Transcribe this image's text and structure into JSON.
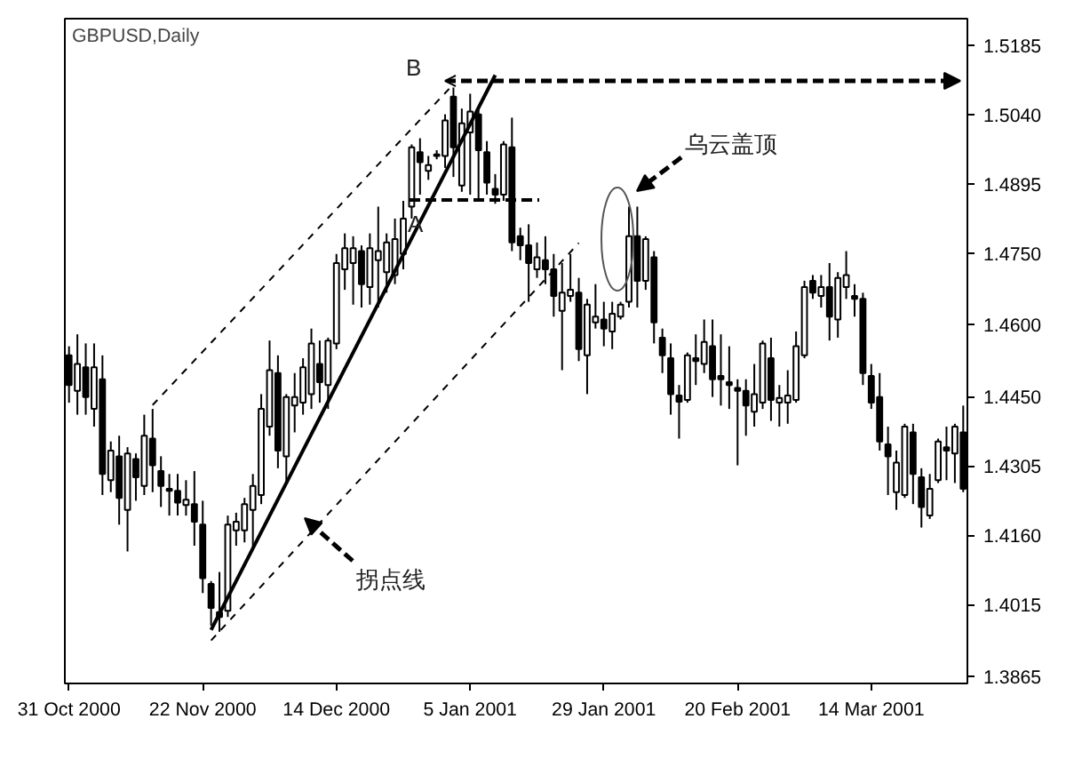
{
  "chart_data": {
    "type": "candlestick",
    "title": "GBPUSD,Daily",
    "categories": [
      "31 Oct 2000",
      null,
      null,
      null,
      null,
      null,
      null,
      null,
      null,
      null,
      null,
      null,
      null,
      null,
      null,
      null,
      "22 Nov 2000",
      null,
      null,
      null,
      null,
      null,
      null,
      null,
      null,
      null,
      null,
      null,
      null,
      null,
      null,
      null,
      "14 Dec 2000",
      null,
      null,
      null,
      null,
      null,
      null,
      null,
      null,
      null,
      null,
      null,
      null,
      null,
      null,
      null,
      "5 Jan 2001",
      null,
      null,
      null,
      null,
      null,
      null,
      null,
      null,
      null,
      null,
      null,
      null,
      null,
      null,
      null,
      "29 Jan 2001",
      null,
      null,
      null,
      null,
      null,
      null,
      null,
      null,
      null,
      null,
      null,
      null,
      null,
      null,
      null,
      "20 Feb 2001",
      null,
      null,
      null,
      null,
      null,
      null,
      null,
      null,
      null,
      null,
      null,
      null,
      null,
      null,
      null,
      "14 Mar 2001",
      null,
      null,
      null,
      null,
      null,
      null,
      null,
      null,
      null,
      null,
      null
    ],
    "ohlc": [
      [
        1.4536,
        1.4555,
        1.4437,
        1.4474
      ],
      [
        1.4462,
        1.458,
        1.4412,
        1.4518
      ],
      [
        1.4511,
        1.4561,
        1.4412,
        1.4449
      ],
      [
        1.4424,
        1.4561,
        1.4387,
        1.4511
      ],
      [
        1.4486,
        1.4536,
        1.4244,
        1.4288
      ],
      [
        1.4275,
        1.4356,
        1.425,
        1.4337
      ],
      [
        1.4325,
        1.4368,
        1.4182,
        1.4238
      ],
      [
        1.4213,
        1.4344,
        1.4126,
        1.4331
      ],
      [
        1.4319,
        1.4331,
        1.4232,
        1.4281
      ],
      [
        1.4263,
        1.4412,
        1.4244,
        1.4368
      ],
      [
        1.4362,
        1.4424,
        1.425,
        1.4306
      ],
      [
        1.4294,
        1.4325,
        1.4219,
        1.4263
      ],
      [
        1.4257,
        1.4288,
        1.4201,
        1.4253
      ],
      [
        1.4253,
        1.4288,
        1.4201,
        1.4228
      ],
      [
        1.4223,
        1.4275,
        1.4201,
        1.4234
      ],
      [
        1.4225,
        1.4294,
        1.4138,
        1.4188
      ],
      [
        1.4182,
        1.4232,
        1.4039,
        1.407
      ],
      [
        1.4058,
        1.4064,
        1.3971,
        1.4008
      ],
      [
        1.3999,
        1.4083,
        1.3958,
        1.3989
      ],
      [
        1.4002,
        1.4201,
        1.3989,
        1.4182
      ],
      [
        1.417,
        1.4207,
        1.4138,
        1.4188
      ],
      [
        1.417,
        1.4238,
        1.4145,
        1.4225
      ],
      [
        1.4213,
        1.4288,
        1.4132,
        1.4263
      ],
      [
        1.4244,
        1.4455,
        1.4225,
        1.4424
      ],
      [
        1.4387,
        1.4567,
        1.4368,
        1.4505
      ],
      [
        1.4499,
        1.4536,
        1.43,
        1.4337
      ],
      [
        1.4325,
        1.4455,
        1.4269,
        1.4449
      ],
      [
        1.4431,
        1.4499,
        1.4375,
        1.4449
      ],
      [
        1.4437,
        1.453,
        1.4412,
        1.4511
      ],
      [
        1.4455,
        1.4592,
        1.4424,
        1.4561
      ],
      [
        1.4518,
        1.4567,
        1.4437,
        1.448
      ],
      [
        1.4474,
        1.4573,
        1.4424,
        1.4567
      ],
      [
        1.4561,
        1.4748,
        1.4549,
        1.4729
      ],
      [
        1.4716,
        1.4791,
        1.4673,
        1.476
      ],
      [
        1.4729,
        1.4785,
        1.4642,
        1.476
      ],
      [
        1.4754,
        1.4766,
        1.4636,
        1.4685
      ],
      [
        1.4679,
        1.4791,
        1.4642,
        1.476
      ],
      [
        1.4735,
        1.4847,
        1.4636,
        1.4754
      ],
      [
        1.471,
        1.4791,
        1.4667,
        1.4772
      ],
      [
        1.4704,
        1.4822,
        1.4685,
        1.4779
      ],
      [
        1.4748,
        1.4859,
        1.4716,
        1.4822
      ],
      [
        1.4847,
        1.4977,
        1.4822,
        1.4971
      ],
      [
        1.4961,
        1.499,
        1.4872,
        1.494
      ],
      [
        1.4922,
        1.4953,
        1.4903,
        1.4934
      ],
      [
        1.4953,
        1.4965,
        1.4946,
        1.4956
      ],
      [
        1.4953,
        1.504,
        1.4928,
        1.5027
      ],
      [
        1.5077,
        1.5096,
        1.4909,
        1.4971
      ],
      [
        1.4891,
        1.5052,
        1.4878,
        1.5021
      ],
      [
        1.5002,
        1.5083,
        1.4872,
        1.5046
      ],
      [
        1.504,
        1.5052,
        1.4859,
        1.4965
      ],
      [
        1.4961,
        1.4984,
        1.4872,
        1.4897
      ],
      [
        1.4884,
        1.4915,
        1.4853,
        1.4872
      ],
      [
        1.4872,
        1.4984,
        1.4859,
        1.4977
      ],
      [
        1.4971,
        1.5033,
        1.4754,
        1.4772
      ],
      [
        1.4785,
        1.4803,
        1.4735,
        1.4766
      ],
      [
        1.4766,
        1.481,
        1.4648,
        1.4729
      ],
      [
        1.4716,
        1.4772,
        1.4698,
        1.4741
      ],
      [
        1.4735,
        1.4785,
        1.4685,
        1.4716
      ],
      [
        1.4716,
        1.4748,
        1.4617,
        1.466
      ],
      [
        1.4629,
        1.4729,
        1.4505,
        1.4667
      ],
      [
        1.466,
        1.4748,
        1.4648,
        1.4673
      ],
      [
        1.4667,
        1.4698,
        1.4524,
        1.4549
      ],
      [
        1.4536,
        1.4654,
        1.4455,
        1.4642
      ],
      [
        1.4605,
        1.4685,
        1.4592,
        1.4617
      ],
      [
        1.4611,
        1.4648,
        1.4555,
        1.4592
      ],
      [
        1.4586,
        1.4648,
        1.4549,
        1.4623
      ],
      [
        1.4617,
        1.4648,
        1.4611,
        1.4642
      ],
      [
        1.4648,
        1.4847,
        1.4636,
        1.4785
      ],
      [
        1.4785,
        1.4847,
        1.4636,
        1.4692
      ],
      [
        1.4692,
        1.4785,
        1.4673,
        1.4779
      ],
      [
        1.4741,
        1.4754,
        1.4561,
        1.4605
      ],
      [
        1.4573,
        1.4592,
        1.4499,
        1.4536
      ],
      [
        1.453,
        1.4561,
        1.4412,
        1.4455
      ],
      [
        1.4452,
        1.4474,
        1.4362,
        1.4439
      ],
      [
        1.4443,
        1.4542,
        1.4437,
        1.4536
      ],
      [
        1.453,
        1.458,
        1.4474,
        1.4524
      ],
      [
        1.4518,
        1.4611,
        1.4499,
        1.4564
      ],
      [
        1.4555,
        1.4611,
        1.4449,
        1.4486
      ],
      [
        1.4493,
        1.458,
        1.4431,
        1.4486
      ],
      [
        1.448,
        1.4555,
        1.4424,
        1.4474
      ],
      [
        1.4468,
        1.4486,
        1.4306,
        1.4462
      ],
      [
        1.4462,
        1.4486,
        1.4368,
        1.4431
      ],
      [
        1.4418,
        1.4518,
        1.4387,
        1.4455
      ],
      [
        1.4437,
        1.4567,
        1.4424,
        1.4561
      ],
      [
        1.453,
        1.4573,
        1.4399,
        1.4443
      ],
      [
        1.4437,
        1.4474,
        1.4387,
        1.4447
      ],
      [
        1.4437,
        1.4505,
        1.4393,
        1.4452
      ],
      [
        1.4443,
        1.4586,
        1.4437,
        1.4555
      ],
      [
        1.4536,
        1.4692,
        1.453,
        1.4679
      ],
      [
        1.4692,
        1.4704,
        1.4654,
        1.4667
      ],
      [
        1.466,
        1.4704,
        1.4636,
        1.4679
      ],
      [
        1.4679,
        1.4729,
        1.4567,
        1.4617
      ],
      [
        1.4611,
        1.471,
        1.4573,
        1.4698
      ],
      [
        1.4679,
        1.4754,
        1.4654,
        1.4704
      ],
      [
        1.466,
        1.4685,
        1.4617,
        1.4654
      ],
      [
        1.4654,
        1.4667,
        1.4474,
        1.4499
      ],
      [
        1.4493,
        1.4518,
        1.4424,
        1.4437
      ],
      [
        1.4449,
        1.4499,
        1.4337,
        1.4356
      ],
      [
        1.435,
        1.4387,
        1.4244,
        1.4325
      ],
      [
        1.425,
        1.4337,
        1.4213,
        1.4312
      ],
      [
        1.4244,
        1.4393,
        1.4238,
        1.4387
      ],
      [
        1.4375,
        1.4393,
        1.4225,
        1.4288
      ],
      [
        1.4281,
        1.43,
        1.4176,
        1.4219
      ],
      [
        1.4201,
        1.4288,
        1.4194,
        1.4257
      ],
      [
        1.4275,
        1.4362,
        1.4269,
        1.4356
      ],
      [
        1.4344,
        1.4387,
        1.4275,
        1.4337
      ],
      [
        1.4331,
        1.4393,
        1.4269,
        1.4387
      ],
      [
        1.4375,
        1.4431,
        1.425,
        1.4257
      ]
    ],
    "ylim": [
      1.385,
      1.524
    ],
    "yticks": [
      {
        "value": 1.3865,
        "label": "1.3865"
      },
      {
        "value": 1.4015,
        "label": "1.4015"
      },
      {
        "value": 1.416,
        "label": "1.4160"
      },
      {
        "value": 1.4305,
        "label": "1.4305"
      },
      {
        "value": 1.445,
        "label": "1.4450"
      },
      {
        "value": 1.46,
        "label": "1.4600"
      },
      {
        "value": 1.475,
        "label": "1.4750"
      },
      {
        "value": 1.4895,
        "label": "1.4895"
      },
      {
        "value": 1.504,
        "label": "1.5040"
      },
      {
        "value": 1.5185,
        "label": "1.5185"
      }
    ],
    "series": [
      {
        "type": "line",
        "color": "#000000",
        "line_style": "solid",
        "values": [
          null,
          null,
          null,
          null,
          null,
          null,
          null,
          null,
          null,
          null,
          null,
          null,
          null,
          null,
          null,
          null,
          null,
          1.3962,
          null,
          null,
          null,
          null,
          null,
          null,
          null,
          null,
          null,
          null,
          null,
          null,
          null,
          null,
          null,
          null,
          null,
          null,
          null,
          null,
          null,
          null,
          null,
          null,
          null,
          null,
          null,
          null,
          null,
          null,
          null,
          null,
          null,
          1.5122,
          null,
          null,
          null,
          null,
          null,
          null,
          null,
          null,
          null,
          null,
          null,
          null,
          null,
          null,
          null,
          null,
          null,
          null,
          null,
          null,
          null,
          null,
          null,
          null,
          null,
          null,
          null,
          null,
          null,
          null,
          null,
          null,
          null,
          null,
          null,
          null,
          null,
          null,
          null,
          null,
          null,
          null,
          null,
          null,
          null,
          null,
          null,
          null,
          null,
          null,
          null,
          null,
          null,
          null,
          null,
          null
        ]
      },
      {
        "type": "line",
        "color": "#000000",
        "line_style": "dashed",
        "values": [
          null,
          null,
          null,
          null,
          null,
          null,
          null,
          null,
          null,
          null,
          1.4432,
          null,
          null,
          null,
          null,
          null,
          null,
          null,
          null,
          null,
          null,
          null,
          null,
          null,
          null,
          null,
          null,
          null,
          null,
          null,
          null,
          null,
          null,
          null,
          null,
          null,
          null,
          null,
          null,
          null,
          null,
          null,
          null,
          null,
          null,
          null,
          1.5103,
          null,
          null,
          null,
          null,
          null,
          null,
          null,
          null,
          null,
          null,
          null,
          null,
          null,
          null,
          null,
          null,
          null,
          null,
          null,
          null,
          null,
          null,
          null,
          null,
          null,
          null,
          null,
          null,
          null,
          null,
          null,
          null,
          null,
          null,
          null,
          null,
          null,
          null,
          null,
          null,
          null,
          null,
          null,
          null,
          null,
          null,
          null,
          null,
          null,
          null,
          null,
          null,
          null,
          null,
          null,
          null,
          null,
          null,
          null,
          null,
          null
        ]
      },
      {
        "type": "line",
        "color": "#000000",
        "line_style": "dashed",
        "values": [
          null,
          null,
          null,
          null,
          null,
          null,
          null,
          null,
          null,
          null,
          null,
          null,
          null,
          null,
          null,
          null,
          null,
          1.394,
          null,
          null,
          null,
          null,
          null,
          null,
          null,
          null,
          null,
          null,
          null,
          null,
          null,
          null,
          null,
          null,
          null,
          null,
          null,
          null,
          null,
          null,
          null,
          null,
          null,
          null,
          null,
          null,
          null,
          null,
          null,
          null,
          null,
          null,
          null,
          null,
          null,
          null,
          null,
          null,
          null,
          null,
          null,
          1.4771,
          null,
          null,
          null,
          null,
          null,
          null,
          null,
          null,
          null,
          null,
          null,
          null,
          null,
          null,
          null,
          null,
          null,
          null,
          null,
          null,
          null,
          null,
          null,
          null,
          null,
          null,
          null,
          null,
          null,
          null,
          null,
          null,
          null,
          null,
          null,
          null,
          null,
          null,
          null,
          null,
          null,
          null,
          null,
          null,
          null,
          null
        ]
      }
    ],
    "annotations": [
      "B",
      "A",
      "乌云盖顶",
      "拐点线"
    ]
  }
}
